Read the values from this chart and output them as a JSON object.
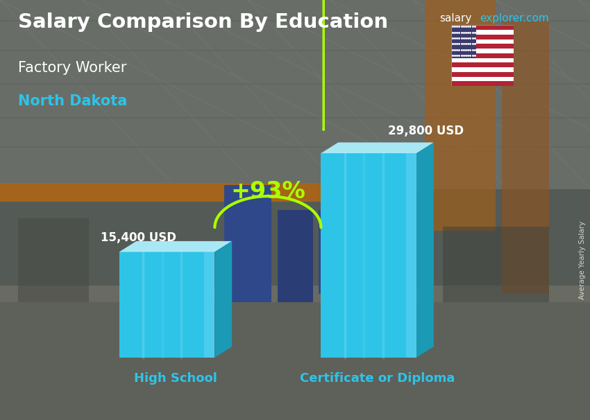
{
  "title_main": "Salary Comparison By Education",
  "title_sub1": "Factory Worker",
  "title_sub2": "North Dakota",
  "site_text1": "salary",
  "site_text2": "explorer.com",
  "categories": [
    "High School",
    "Certificate or Diploma"
  ],
  "values": [
    15400,
    29800
  ],
  "value_labels": [
    "15,400 USD",
    "29,800 USD"
  ],
  "bar_color_face": "#2EC4E8",
  "bar_color_top": "#A8E8F5",
  "bar_color_side": "#1A9AB5",
  "pct_label": "+93%",
  "pct_color": "#AAFF00",
  "bg_top": "#6a7070",
  "bg_bottom": "#5a6060",
  "title_color": "#FFFFFF",
  "subtitle1_color": "#FFFFFF",
  "subtitle2_color": "#2EC4E8",
  "label_color": "#2EC4E8",
  "value_color": "#FFFFFF",
  "rotated_label": "Average Yearly Salary",
  "ylim_max": 35000,
  "bar_width": 0.18
}
